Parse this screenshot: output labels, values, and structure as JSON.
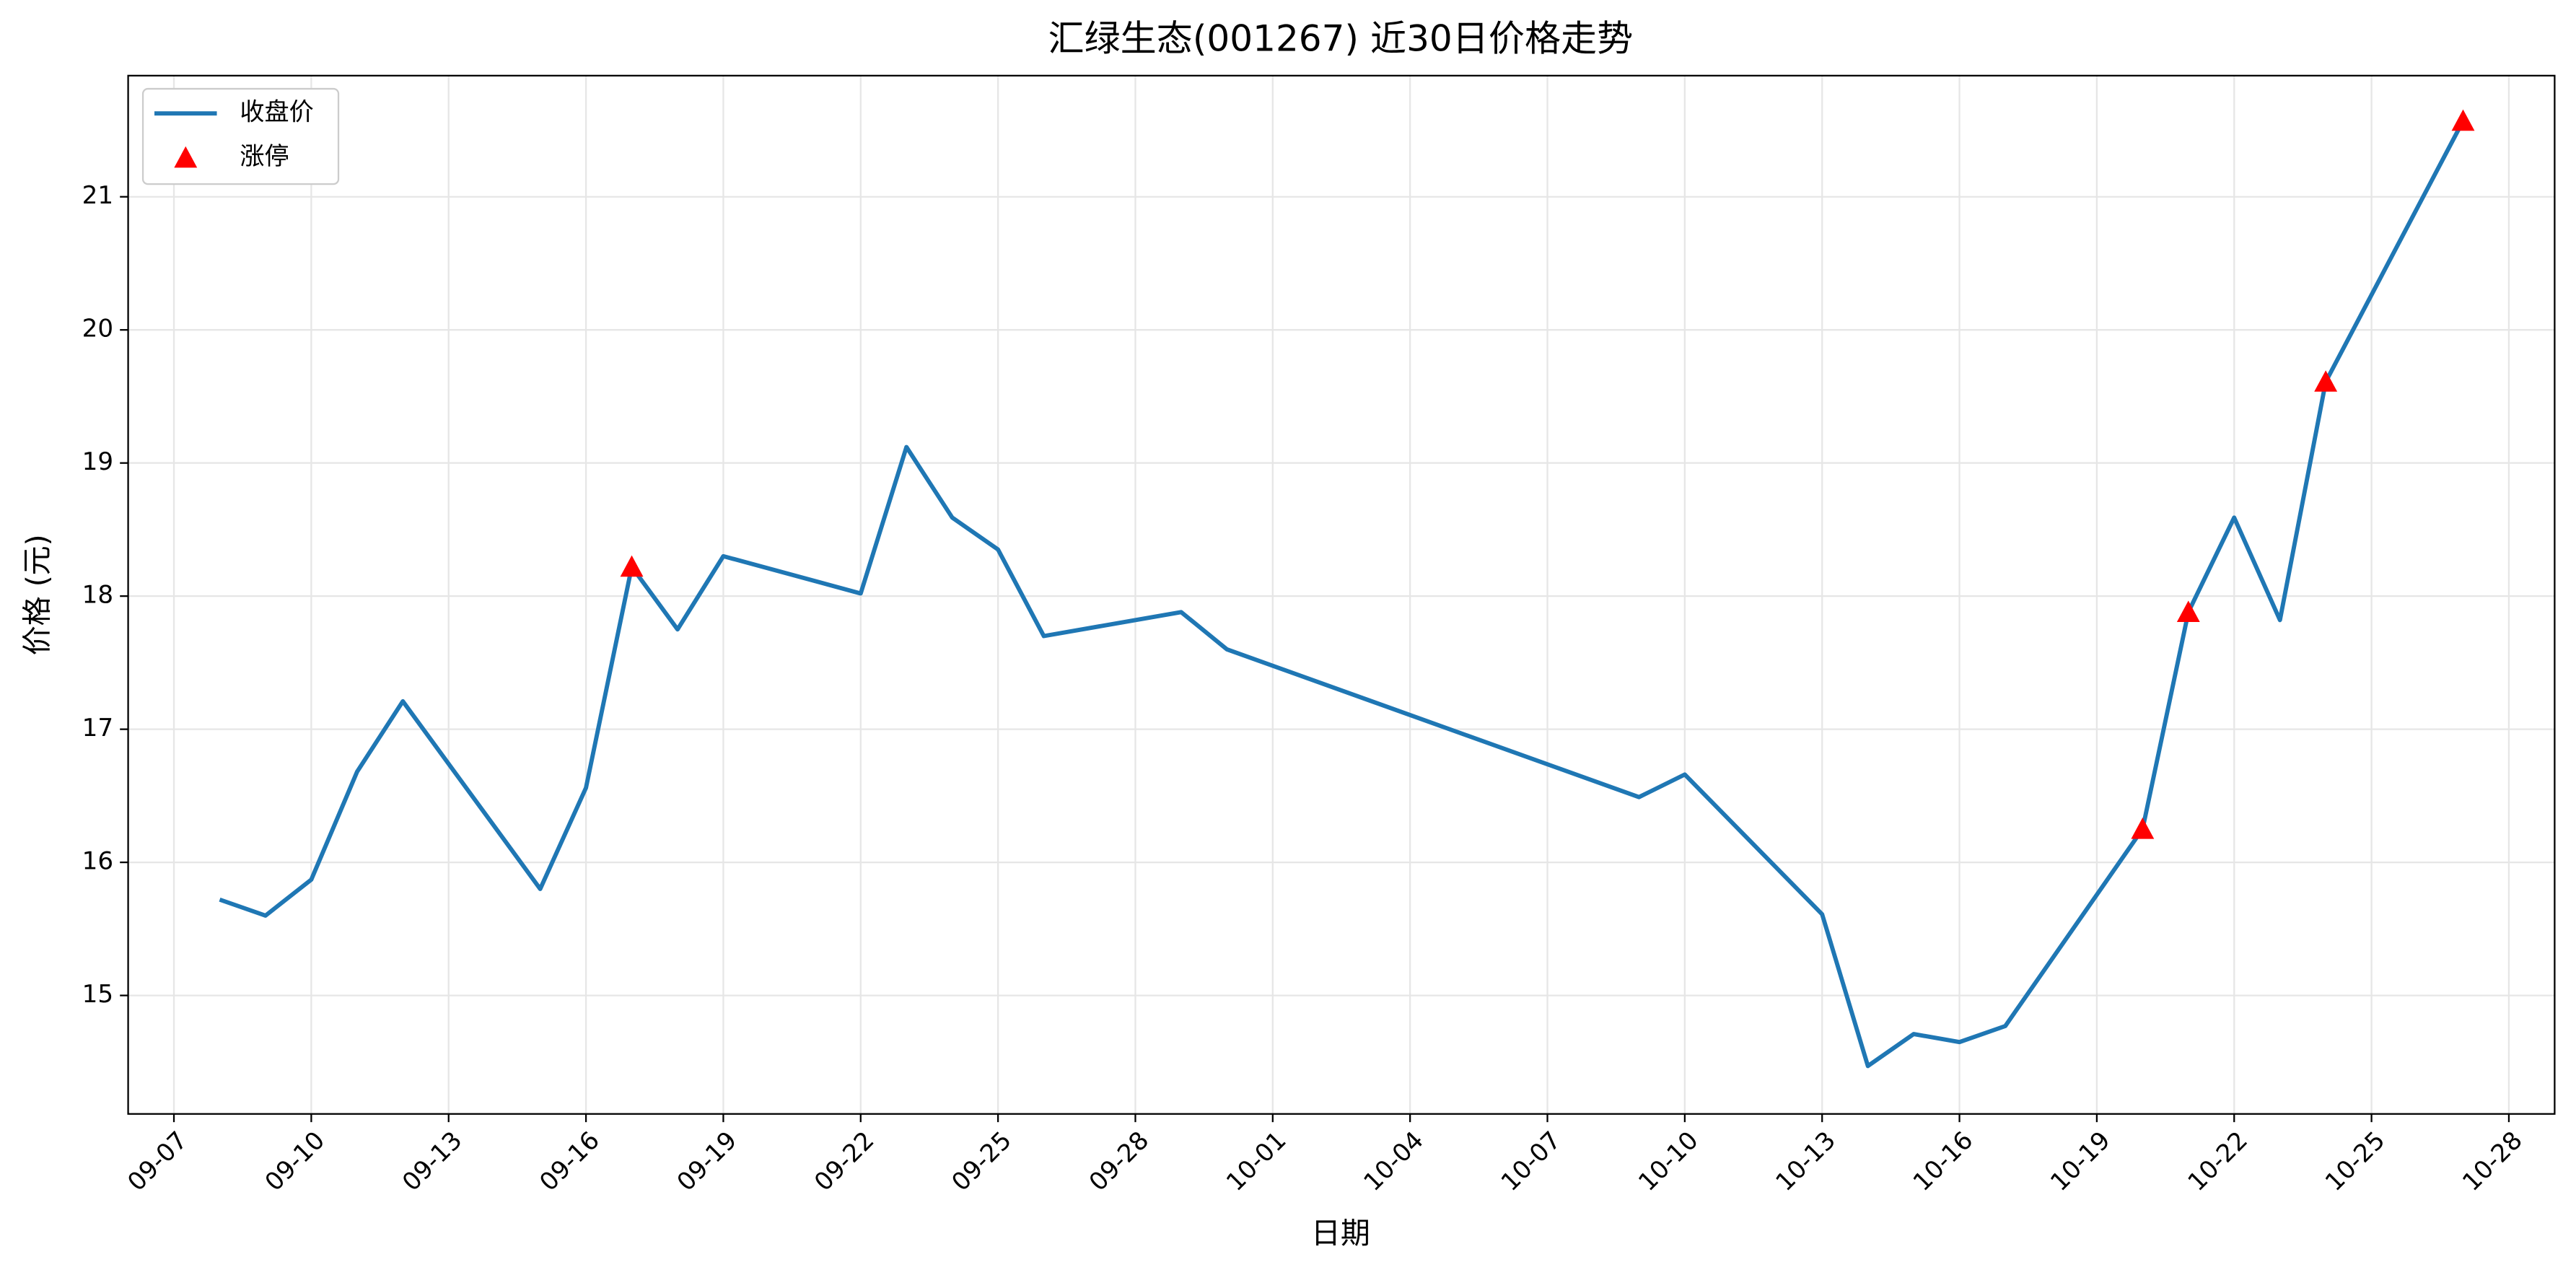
{
  "chart_data": {
    "type": "line",
    "title": "汇绿生态(001267) 近30日价格走势",
    "x_label": "日期",
    "y_label": "价格 (元)",
    "x": [
      "09-08",
      "09-09",
      "09-10",
      "09-11",
      "09-12",
      "09-15",
      "09-16",
      "09-17",
      "09-18",
      "09-19",
      "09-22",
      "09-23",
      "09-24",
      "09-25",
      "09-26",
      "09-29",
      "09-30",
      "10-09",
      "10-10",
      "10-13",
      "10-14",
      "10-15",
      "10-16",
      "10-17",
      "10-20",
      "10-21",
      "10-22",
      "10-23",
      "10-24",
      "10-27"
    ],
    "series": [
      {
        "name": "收盘价",
        "color": "#1f77b4",
        "style": "line",
        "values": [
          15.72,
          15.6,
          15.87,
          16.68,
          17.21,
          15.8,
          16.56,
          18.22,
          17.75,
          18.3,
          18.02,
          19.12,
          18.59,
          18.35,
          17.7,
          17.88,
          17.6,
          16.49,
          16.66,
          15.61,
          14.47,
          14.71,
          14.65,
          14.77,
          16.25,
          17.88,
          18.59,
          17.82,
          19.61,
          21.57
        ]
      },
      {
        "name": "涨停",
        "color": "#ff0000",
        "style": "marker",
        "values": [
          null,
          null,
          null,
          null,
          null,
          null,
          null,
          18.22,
          null,
          null,
          null,
          null,
          null,
          null,
          null,
          null,
          null,
          null,
          null,
          null,
          null,
          null,
          null,
          null,
          16.25,
          17.88,
          null,
          null,
          19.61,
          21.57
        ]
      }
    ],
    "xlim": [
      "09-06",
      "10-29"
    ],
    "xticks": [
      "09-07",
      "09-10",
      "09-13",
      "09-16",
      "09-19",
      "09-22",
      "09-25",
      "09-28",
      "10-01",
      "10-04",
      "10-07",
      "10-10",
      "10-13",
      "10-16",
      "10-19",
      "10-22",
      "10-25",
      "10-28"
    ],
    "ylim": [
      14.11,
      21.91
    ],
    "yticks": [
      15,
      16,
      17,
      18,
      19,
      20,
      21
    ],
    "grid": true,
    "legend": "upper left"
  }
}
